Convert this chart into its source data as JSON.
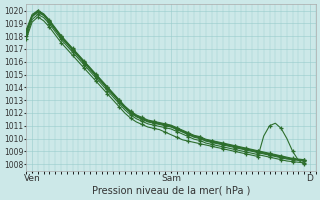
{
  "xlabel": "Pression niveau de la mer( hPa )",
  "ylim": [
    1007.5,
    1020.5
  ],
  "yticks": [
    1008,
    1009,
    1010,
    1011,
    1012,
    1013,
    1014,
    1015,
    1016,
    1017,
    1018,
    1019,
    1020
  ],
  "xlim": [
    0,
    50
  ],
  "xtick_positions": [
    1,
    25,
    49
  ],
  "xtick_labels": [
    "Ven",
    "Sam",
    "D"
  ],
  "bg_color": "#cce8e8",
  "grid_color": "#99cccc",
  "line_color": "#2d6e2d",
  "series": [
    [
      1018.2,
      1019.5,
      1019.9,
      1019.6,
      1019.1,
      1018.5,
      1017.9,
      1017.4,
      1016.9,
      1016.4,
      1015.9,
      1015.4,
      1014.9,
      1014.4,
      1013.9,
      1013.4,
      1012.9,
      1012.4,
      1012.0,
      1011.7,
      1011.5,
      1011.3,
      1011.2,
      1011.1,
      1011.0,
      1010.9,
      1010.7,
      1010.5,
      1010.3,
      1010.1,
      1010.0,
      1009.8,
      1009.7,
      1009.6,
      1009.5,
      1009.4,
      1009.3,
      1009.2,
      1009.1,
      1009.0,
      1008.9,
      1008.8,
      1008.7,
      1008.6,
      1008.5,
      1008.4,
      1008.35,
      1008.3,
      1008.25
    ],
    [
      1018.4,
      1019.6,
      1020.0,
      1019.7,
      1019.2,
      1018.6,
      1018.0,
      1017.5,
      1017.0,
      1016.5,
      1016.0,
      1015.5,
      1015.0,
      1014.5,
      1014.0,
      1013.5,
      1013.0,
      1012.5,
      1012.1,
      1011.8,
      1011.6,
      1011.4,
      1011.3,
      1011.2,
      1011.1,
      1011.0,
      1010.8,
      1010.6,
      1010.4,
      1010.2,
      1010.1,
      1009.9,
      1009.8,
      1009.7,
      1009.6,
      1009.5,
      1009.4,
      1009.3,
      1009.2,
      1009.1,
      1009.0,
      1008.9,
      1008.8,
      1008.7,
      1008.6,
      1008.5,
      1008.4,
      1008.35,
      1008.3
    ],
    [
      1018.5,
      1019.7,
      1020.0,
      1019.75,
      1019.25,
      1018.65,
      1018.05,
      1017.55,
      1017.05,
      1016.55,
      1016.05,
      1015.55,
      1015.05,
      1014.55,
      1014.05,
      1013.55,
      1013.05,
      1012.55,
      1012.15,
      1011.85,
      1011.65,
      1011.45,
      1011.35,
      1011.25,
      1011.15,
      1011.05,
      1010.85,
      1010.65,
      1010.45,
      1010.25,
      1010.15,
      1009.95,
      1009.85,
      1009.75,
      1009.65,
      1009.55,
      1009.45,
      1009.35,
      1009.25,
      1009.15,
      1009.05,
      1008.95,
      1008.85,
      1008.75,
      1008.65,
      1008.55,
      1008.45,
      1008.4,
      1008.35
    ],
    [
      1018.3,
      1019.55,
      1019.9,
      1019.65,
      1019.15,
      1018.55,
      1017.95,
      1017.45,
      1016.95,
      1016.45,
      1015.95,
      1015.45,
      1014.95,
      1014.45,
      1013.95,
      1013.45,
      1012.95,
      1012.45,
      1012.05,
      1011.75,
      1011.55,
      1011.35,
      1011.25,
      1011.15,
      1011.05,
      1010.95,
      1010.75,
      1010.55,
      1010.35,
      1010.15,
      1010.05,
      1009.85,
      1009.75,
      1009.65,
      1009.55,
      1009.45,
      1009.35,
      1009.25,
      1009.15,
      1009.05,
      1008.95,
      1008.85,
      1008.75,
      1008.65,
      1008.55,
      1008.45,
      1008.4,
      1008.35,
      1008.3
    ],
    [
      1018.0,
      1019.3,
      1019.7,
      1019.45,
      1018.95,
      1018.35,
      1017.75,
      1017.25,
      1016.75,
      1016.25,
      1015.75,
      1015.25,
      1014.75,
      1014.25,
      1013.75,
      1013.25,
      1012.75,
      1012.25,
      1011.85,
      1011.55,
      1011.35,
      1011.15,
      1011.05,
      1010.95,
      1010.85,
      1010.75,
      1010.55,
      1010.35,
      1010.15,
      1009.95,
      1009.85,
      1009.65,
      1009.55,
      1009.45,
      1009.35,
      1009.25,
      1009.15,
      1009.05,
      1008.95,
      1008.85,
      1008.75,
      1008.65,
      1008.55,
      1008.45,
      1008.35,
      1008.25,
      1008.2,
      1008.15,
      1008.1
    ],
    [
      1017.8,
      1019.1,
      1019.5,
      1019.2,
      1018.7,
      1018.1,
      1017.5,
      1017.0,
      1016.5,
      1016.0,
      1015.5,
      1015.0,
      1014.5,
      1014.0,
      1013.5,
      1013.0,
      1012.5,
      1012.0,
      1011.6,
      1011.3,
      1011.1,
      1010.9,
      1010.8,
      1010.7,
      1010.5,
      1010.3,
      1010.1,
      1009.9,
      1009.8,
      1009.7,
      1009.6,
      1009.5,
      1009.4,
      1009.3,
      1009.2,
      1009.1,
      1009.0,
      1008.9,
      1008.8,
      1008.7,
      1008.6,
      1010.2,
      1011.0,
      1011.2,
      1010.8,
      1010.0,
      1009.0,
      1008.3,
      1008.0
    ]
  ]
}
